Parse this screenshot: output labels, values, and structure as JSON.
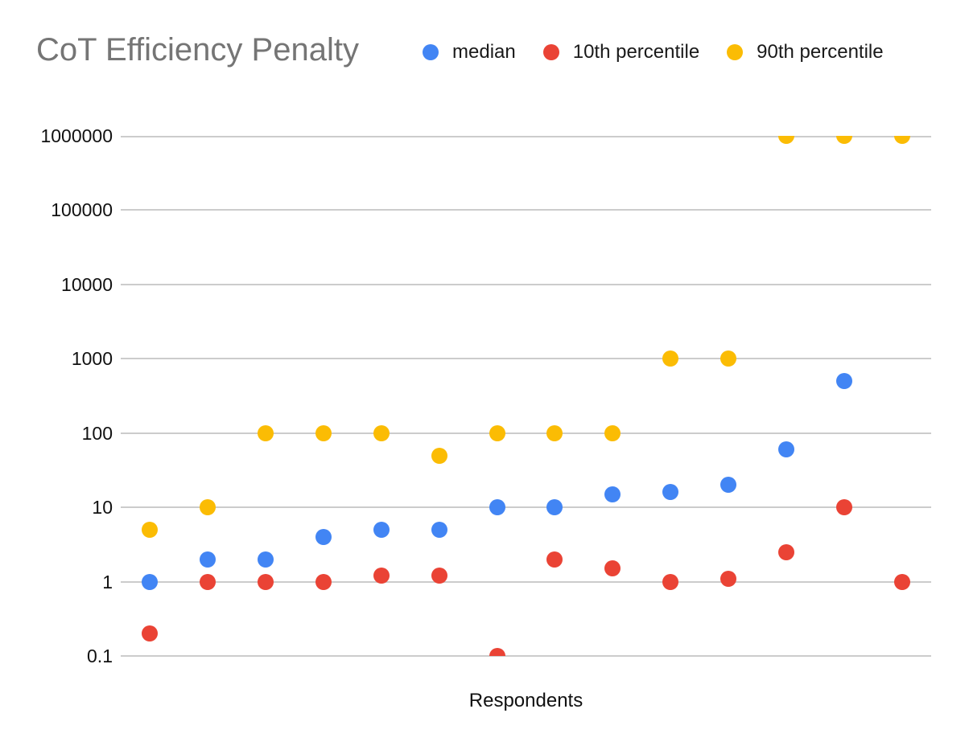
{
  "chart_data": {
    "type": "scatter",
    "title": "CoT Efficiency Penalty",
    "xlabel": "Respondents",
    "ylabel": "",
    "y_scale": "log",
    "ylim": [
      0.1,
      1000000
    ],
    "y_ticks": [
      "1000000",
      "100000",
      "10000",
      "1000",
      "100",
      "10",
      "1",
      "0.1"
    ],
    "x_count": 14,
    "grid": true,
    "legend_position": "top",
    "series": [
      {
        "name": "median",
        "color": "#4285F4",
        "values": [
          1,
          2,
          2,
          4,
          5,
          5,
          10,
          10,
          15,
          16,
          20,
          60,
          500,
          null
        ]
      },
      {
        "name": "10th percentile",
        "color": "#EA4335",
        "values": [
          0.2,
          1,
          1,
          1,
          1.2,
          1.2,
          0.1,
          2,
          1.5,
          1,
          1.1,
          2.5,
          10,
          1
        ]
      },
      {
        "name": "90th percentile",
        "color": "#FBBC04",
        "values": [
          5,
          10,
          100,
          100,
          100,
          50,
          100,
          100,
          100,
          1000,
          1000,
          1000000,
          1000000,
          1000000
        ]
      }
    ]
  },
  "colors": {
    "grid": "#cccccc",
    "title": "#757575",
    "axis_text": "#111111",
    "background": "#ffffff"
  }
}
